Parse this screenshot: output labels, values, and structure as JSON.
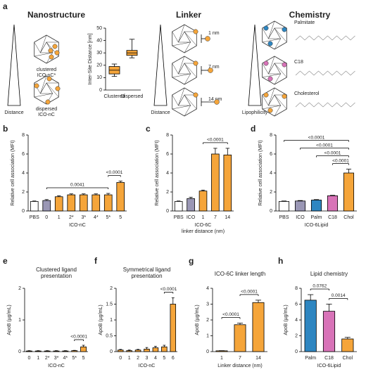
{
  "panel_a": {
    "label": "a",
    "titles": [
      "Nanostructure",
      "Linker",
      "Chemistry"
    ],
    "axis_labels": [
      "Distance",
      "Distance",
      "Lipophilicity"
    ],
    "structures": [
      "clustered",
      "ICO-nC*",
      "dispersed",
      "ICO-nC"
    ],
    "linkers": [
      "1 nm",
      "7 nm",
      "14 nm"
    ],
    "lipids": [
      "Palmitate",
      "C18",
      "Cholesterol"
    ]
  },
  "chart_data": [
    {
      "type": "box",
      "ylabel": "Inter-Site Distance [nm]",
      "categories": [
        "Clustered",
        "Dispersed"
      ],
      "color": "#f5a53a",
      "boxes": [
        {
          "min": 11,
          "q1": 13,
          "median": 16,
          "q3": 19,
          "max": 21
        },
        {
          "min": 26,
          "q1": 28,
          "median": 30,
          "q3": 32,
          "max": 41
        }
      ],
      "ylim": [
        0,
        50
      ],
      "yticks": [
        0,
        10,
        20,
        30,
        40,
        50
      ]
    },
    {
      "type": "bar",
      "panel": "b",
      "ylabel": "Relative cell association (MFI)",
      "xlabel": "ICO-nC",
      "categories": [
        "PBS",
        "0",
        "1",
        "2*",
        "3*",
        "4*",
        "5*",
        "5"
      ],
      "values": [
        1,
        1.1,
        1.5,
        1.7,
        1.7,
        1.7,
        1.7,
        3.0
      ],
      "errors": [
        0.05,
        0.1,
        0.1,
        0.1,
        0.1,
        0.1,
        0.15,
        0.15
      ],
      "colors": [
        "#ffffff",
        "#9a97b5",
        "#f5a53a",
        "#f5a53a",
        "#f5a53a",
        "#f5a53a",
        "#f5a53a",
        "#f5a53a"
      ],
      "ylim": [
        0,
        8
      ],
      "yticks": [
        0,
        2,
        4,
        6,
        8
      ],
      "annotations": [
        {
          "text": "0.0041",
          "between": [
            "0",
            "5*"
          ]
        },
        {
          "text": "<0.0001",
          "between": [
            "5*",
            "5"
          ]
        }
      ]
    },
    {
      "type": "bar",
      "panel": "c",
      "ylabel": "Relative cell association (MFI)",
      "xlabel": [
        "ICO-6C",
        "linker distance (nm)"
      ],
      "categories": [
        "PBS",
        "ICO",
        "1",
        "7",
        "14"
      ],
      "values": [
        1,
        1.3,
        2.1,
        6.0,
        5.9
      ],
      "errors": [
        0.05,
        0.15,
        0.1,
        0.6,
        0.7
      ],
      "colors": [
        "#ffffff",
        "#9a97b5",
        "#f5a53a",
        "#f5a53a",
        "#f5a53a"
      ],
      "ylim": [
        0,
        8
      ],
      "yticks": [
        0,
        2,
        4,
        6,
        8
      ],
      "annotations": [
        {
          "text": "<0.0001",
          "between": [
            "1",
            "14"
          ]
        }
      ]
    },
    {
      "type": "bar",
      "panel": "d",
      "ylabel": "Relative cell association (MFI)",
      "xlabel": "ICO-6Lipid",
      "categories": [
        "PBS",
        "ICO",
        "Palm",
        "C18",
        "Chol"
      ],
      "values": [
        1,
        1.05,
        1.15,
        1.6,
        4.0
      ],
      "errors": [
        0.05,
        0.05,
        0.05,
        0.05,
        0.4
      ],
      "colors": [
        "#ffffff",
        "#9a97b5",
        "#2e86c1",
        "#d873b8",
        "#f5a53a"
      ],
      "ylim": [
        0,
        8
      ],
      "yticks": [
        0,
        2,
        4,
        6,
        8
      ],
      "annotations": [
        {
          "text": "<0.0001",
          "between": [
            "C18",
            "Chol"
          ]
        },
        {
          "text": "<0.0001",
          "between": [
            "Palm",
            "Chol"
          ]
        },
        {
          "text": "<0.0001",
          "between": [
            "ICO",
            "Chol"
          ]
        },
        {
          "text": "<0.0001",
          "between": [
            "PBS",
            "Chol"
          ]
        }
      ]
    },
    {
      "type": "bar",
      "panel": "e",
      "title": [
        "Clustered ligand",
        "presentation"
      ],
      "ylabel": "ApoB (µg/mL)",
      "xlabel": "ICO-nC",
      "categories": [
        "0",
        "1",
        "2*",
        "3*",
        "4*",
        "5*",
        "5"
      ],
      "values": [
        0.02,
        0.02,
        0.02,
        0.02,
        0.02,
        0.03,
        0.15
      ],
      "errors": [
        0.01,
        0.01,
        0.01,
        0.01,
        0.01,
        0.01,
        0.05
      ],
      "colors": [
        "#f5a53a",
        "#f5a53a",
        "#f5a53a",
        "#f5a53a",
        "#f5a53a",
        "#f5a53a",
        "#f5a53a"
      ],
      "ylim": [
        0,
        2
      ],
      "yticks": [
        0,
        1,
        2
      ],
      "annotations": [
        {
          "text": "<0.0001",
          "between": [
            "5*",
            "5"
          ]
        }
      ]
    },
    {
      "type": "bar",
      "panel": "f",
      "title": [
        "Symmetrical ligand",
        "presentation"
      ],
      "ylabel": "ApoB (µg/mL)",
      "xlabel": "ICO-nC",
      "categories": [
        "0",
        "1",
        "2",
        "3",
        "4",
        "5",
        "6"
      ],
      "values": [
        0.05,
        0.03,
        0.05,
        0.08,
        0.12,
        0.15,
        1.5
      ],
      "errors": [
        0.02,
        0.02,
        0.02,
        0.05,
        0.05,
        0.05,
        0.2
      ],
      "colors": [
        "#f5a53a",
        "#f5a53a",
        "#f5a53a",
        "#f5a53a",
        "#f5a53a",
        "#f5a53a",
        "#f5a53a"
      ],
      "ylim": [
        0,
        2
      ],
      "yticks": [
        0,
        0.5,
        1,
        1.5,
        2
      ],
      "annotations": [
        {
          "text": "<0.0001",
          "between": [
            "5",
            "6"
          ]
        }
      ]
    },
    {
      "type": "bar",
      "panel": "g",
      "title": "ICO-6C linker length",
      "ylabel": "ApoB (µg/mL)",
      "xlabel": "Linker distance (nm)",
      "categories": [
        "1",
        "7",
        "14"
      ],
      "values": [
        0.05,
        1.7,
        3.1
      ],
      "errors": [
        0.01,
        0.1,
        0.15
      ],
      "colors": [
        "#f5a53a",
        "#f5a53a",
        "#f5a53a"
      ],
      "ylim": [
        0,
        4
      ],
      "yticks": [
        0,
        1,
        2,
        3,
        4
      ],
      "annotations": [
        {
          "text": "<0.0001",
          "between": [
            "1",
            "7"
          ]
        },
        {
          "text": "<0.0001",
          "between": [
            "7",
            "14"
          ]
        }
      ]
    },
    {
      "type": "bar",
      "panel": "h",
      "title": "Lipid chemistry",
      "ylabel": "ApoB (µg/mL)",
      "xlabel": "ICO-6Lipid",
      "categories": [
        "Palm",
        "C18",
        "Chol"
      ],
      "values": [
        6.5,
        5.1,
        1.6
      ],
      "errors": [
        0.7,
        0.9,
        0.2
      ],
      "colors": [
        "#2e86c1",
        "#d873b8",
        "#f5a53a"
      ],
      "ylim": [
        0,
        8
      ],
      "yticks": [
        0,
        2,
        4,
        6,
        8
      ],
      "annotations": [
        {
          "text": "0.0762",
          "between": [
            "Palm",
            "C18"
          ]
        },
        {
          "text": "0.0014",
          "between": [
            "C18",
            "Chol"
          ]
        }
      ]
    }
  ]
}
